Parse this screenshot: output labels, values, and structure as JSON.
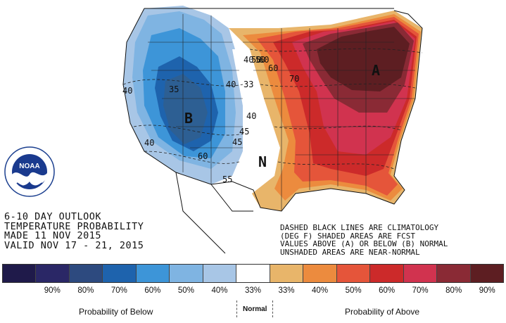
{
  "regions": {
    "below": {
      "letter": "B"
    },
    "above": {
      "letter": "A"
    },
    "normal": {
      "letter": "N"
    }
  },
  "contour_labels": [
    "40",
    "35",
    "40",
    "33",
    "50",
    "60",
    "60",
    "40",
    "50",
    "60",
    "70",
    "55",
    "40",
    "45",
    "45",
    "40"
  ],
  "info": {
    "line1": "6-10 DAY OUTLOOK",
    "line2": "TEMPERATURE PROBABILITY",
    "line3": "MADE   11 NOV 2015",
    "line4": "VALID   NOV 17 - 21, 2015"
  },
  "notes": {
    "line1": "DASHED BLACK LINES ARE CLIMATOLOGY",
    "line2": "(DEG F) SHADED AREAS ARE FCST",
    "line3": "VALUES ABOVE (A) OR BELOW (B) NORMAL",
    "line4": "UNSHADED AREAS ARE NEAR-NORMAL"
  },
  "logo": {
    "text": "NOAA",
    "ring_text": "NATIONAL OCEANIC AND ATMOSPHERIC ADMINISTRATION · U.S. DEPARTMENT OF COMMERCE"
  },
  "legend": {
    "colors": [
      "#1f1a4a",
      "#2a2766",
      "#2d4a7f",
      "#1e63ad",
      "#3d95d8",
      "#7fb4e2",
      "#a8c6e6",
      "#ffffff",
      "#e8b56a",
      "#ec8b3e",
      "#e5553a",
      "#cc2a2a",
      "#d1334f",
      "#8a2a35",
      "#5d1e22"
    ],
    "percentages": [
      "90%",
      "80%",
      "70%",
      "60%",
      "50%",
      "40%",
      "33%",
      "33%",
      "40%",
      "50%",
      "60%",
      "70%",
      "80%",
      "90%"
    ],
    "below_label": "Probability of Below",
    "normal_label": "Normal",
    "above_label": "Probability of Above"
  }
}
